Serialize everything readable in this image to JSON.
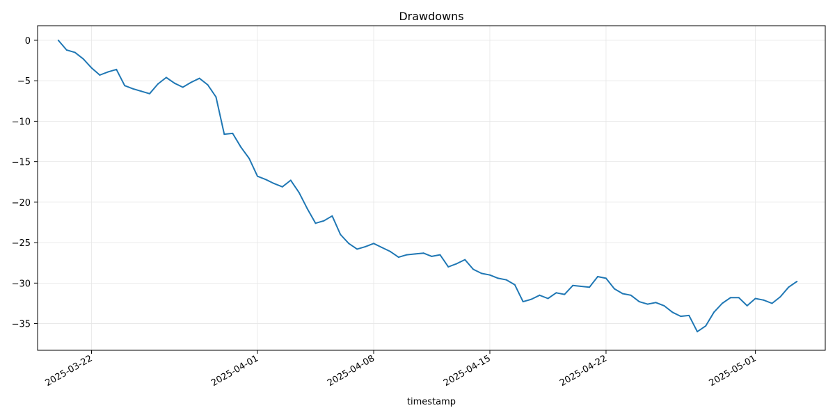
{
  "chart_data": {
    "type": "line",
    "title": "Drawdowns",
    "xlabel": "timestamp",
    "ylabel": "",
    "x_type": "date",
    "xlim": [
      "2025-03-18T18:00",
      "2025-05-05T05:00"
    ],
    "ylim": [
      -38.3,
      1.8
    ],
    "x_ticks": [
      "2025-03-22",
      "2025-04-01",
      "2025-04-08",
      "2025-04-15",
      "2025-04-22",
      "2025-05-01"
    ],
    "y_ticks": [
      0,
      -5,
      -10,
      -15,
      -20,
      -25,
      -30,
      -35
    ],
    "grid": true,
    "series_color": "#1f77b4",
    "series": [
      {
        "x": [
          "2025-03-20T00:00",
          "2025-03-20T12:00",
          "2025-03-21T00:00",
          "2025-03-21T12:00",
          "2025-03-22T00:00",
          "2025-03-22T12:00",
          "2025-03-23T00:00",
          "2025-03-23T12:00",
          "2025-03-24T00:00",
          "2025-03-24T12:00",
          "2025-03-25T00:00",
          "2025-03-25T12:00",
          "2025-03-26T00:00",
          "2025-03-26T12:00",
          "2025-03-27T00:00",
          "2025-03-27T12:00",
          "2025-03-28T00:00",
          "2025-03-28T12:00",
          "2025-03-29T00:00",
          "2025-03-29T12:00",
          "2025-03-30T00:00",
          "2025-03-30T12:00",
          "2025-03-31T00:00",
          "2025-03-31T12:00",
          "2025-04-01T00:00",
          "2025-04-01T12:00",
          "2025-04-02T00:00",
          "2025-04-02T12:00",
          "2025-04-03T00:00",
          "2025-04-03T12:00",
          "2025-04-04T00:00",
          "2025-04-04T12:00",
          "2025-04-05T00:00",
          "2025-04-05T12:00",
          "2025-04-06T00:00",
          "2025-04-06T12:00",
          "2025-04-07T00:00",
          "2025-04-07T12:00",
          "2025-04-08T00:00",
          "2025-04-08T12:00",
          "2025-04-09T00:00",
          "2025-04-09T12:00",
          "2025-04-10T00:00",
          "2025-04-10T12:00",
          "2025-04-11T00:00",
          "2025-04-11T12:00",
          "2025-04-12T00:00",
          "2025-04-12T12:00",
          "2025-04-13T00:00",
          "2025-04-13T12:00",
          "2025-04-14T00:00",
          "2025-04-14T12:00",
          "2025-04-15T00:00",
          "2025-04-15T12:00",
          "2025-04-16T00:00",
          "2025-04-16T12:00",
          "2025-04-17T00:00",
          "2025-04-17T12:00",
          "2025-04-18T00:00",
          "2025-04-18T12:00",
          "2025-04-19T00:00",
          "2025-04-19T12:00",
          "2025-04-20T00:00",
          "2025-04-20T12:00",
          "2025-04-21T00:00",
          "2025-04-21T12:00",
          "2025-04-22T00:00",
          "2025-04-22T12:00",
          "2025-04-23T00:00",
          "2025-04-23T12:00",
          "2025-04-24T00:00",
          "2025-04-24T12:00",
          "2025-04-25T00:00",
          "2025-04-25T12:00",
          "2025-04-26T00:00",
          "2025-04-26T12:00",
          "2025-04-27T00:00",
          "2025-04-27T12:00",
          "2025-04-28T00:00",
          "2025-04-28T12:00",
          "2025-04-29T00:00",
          "2025-04-29T12:00",
          "2025-04-30T00:00",
          "2025-04-30T12:00",
          "2025-05-01T00:00",
          "2025-05-01T12:00",
          "2025-05-02T00:00",
          "2025-05-02T12:00",
          "2025-05-03T00:00",
          "2025-05-03T12:00"
        ],
        "y": [
          0.0,
          -1.2,
          -1.5,
          -2.3,
          -3.4,
          -4.3,
          -3.9,
          -3.6,
          -5.6,
          -6.0,
          -6.3,
          -6.6,
          -5.4,
          -4.6,
          -5.3,
          -5.8,
          -5.2,
          -4.7,
          -5.5,
          -7.0,
          -11.6,
          -11.5,
          -13.2,
          -14.6,
          -16.8,
          -17.2,
          -17.7,
          -18.1,
          -17.3,
          -18.8,
          -20.8,
          -22.6,
          -22.3,
          -21.7,
          -24.0,
          -25.1,
          -25.8,
          -25.5,
          -25.1,
          -25.6,
          -26.1,
          -26.8,
          -26.5,
          -26.4,
          -26.3,
          -26.7,
          -26.5,
          -28.0,
          -27.6,
          -27.1,
          -28.3,
          -28.8,
          -29.0,
          -29.4,
          -29.6,
          -30.2,
          -32.3,
          -32.0,
          -31.5,
          -31.9,
          -31.2,
          -31.4,
          -30.3,
          -30.4,
          -30.5,
          -29.2,
          -29.4,
          -30.7,
          -31.3,
          -31.5,
          -32.3,
          -32.6,
          -32.4,
          -32.8,
          -33.6,
          -34.1,
          -34.0,
          -36.0,
          -35.3,
          -33.6,
          -32.5,
          -31.8,
          -31.8,
          -32.8,
          -31.9,
          -32.1,
          -32.5,
          -31.7,
          -30.5,
          -29.8
        ]
      }
    ]
  }
}
